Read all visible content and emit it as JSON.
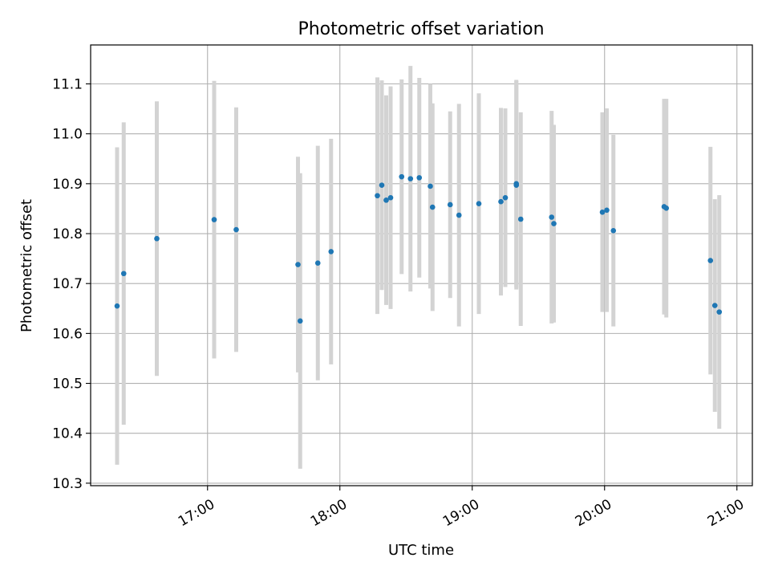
{
  "chart_data": {
    "type": "scatter",
    "title": "Photometric offset variation",
    "xlabel": "UTC time",
    "ylabel": "Photometric offset",
    "x_type": "time",
    "xlim": [
      "16:07",
      "21:07"
    ],
    "ylim": [
      10.295,
      11.178
    ],
    "grid": true,
    "x_ticks": [
      "17:00",
      "18:00",
      "19:00",
      "20:00",
      "21:00"
    ],
    "y_ticks": [
      10.3,
      10.4,
      10.5,
      10.6,
      10.7,
      10.8,
      10.9,
      11.0,
      11.1
    ],
    "y_tick_labels": [
      "10.3",
      "10.4",
      "10.5",
      "10.6",
      "10.7",
      "10.8",
      "10.9",
      "11.0",
      "11.1"
    ],
    "colors": {
      "point": "#1f77b4",
      "errorbar": "#d3d3d3",
      "grid": "#b0b0b0"
    },
    "series": [
      {
        "points": [
          {
            "x": "16:19",
            "y": 10.655,
            "err": 0.318
          },
          {
            "x": "16:22",
            "y": 10.72,
            "err": 0.303
          },
          {
            "x": "16:37",
            "y": 10.79,
            "err": 0.275
          },
          {
            "x": "17:03",
            "y": 10.828,
            "err": 0.278
          },
          {
            "x": "17:13",
            "y": 10.808,
            "err": 0.245
          },
          {
            "x": "17:41",
            "y": 10.738,
            "err": 0.216
          },
          {
            "x": "17:42",
            "y": 10.625,
            "err": 0.296
          },
          {
            "x": "17:50",
            "y": 10.741,
            "err": 0.235
          },
          {
            "x": "17:56",
            "y": 10.764,
            "err": 0.226
          },
          {
            "x": "18:17",
            "y": 10.876,
            "err": 0.237
          },
          {
            "x": "18:19",
            "y": 10.897,
            "err": 0.21
          },
          {
            "x": "18:21",
            "y": 10.867,
            "err": 0.21
          },
          {
            "x": "18:23",
            "y": 10.872,
            "err": 0.223
          },
          {
            "x": "18:28",
            "y": 10.914,
            "err": 0.195
          },
          {
            "x": "18:32",
            "y": 10.91,
            "err": 0.226
          },
          {
            "x": "18:36",
            "y": 10.912,
            "err": 0.2
          },
          {
            "x": "18:41",
            "y": 10.895,
            "err": 0.205
          },
          {
            "x": "18:42",
            "y": 10.853,
            "err": 0.208
          },
          {
            "x": "18:50",
            "y": 10.858,
            "err": 0.187
          },
          {
            "x": "18:54",
            "y": 10.837,
            "err": 0.223
          },
          {
            "x": "19:03",
            "y": 10.86,
            "err": 0.221
          },
          {
            "x": "19:13",
            "y": 10.864,
            "err": 0.188
          },
          {
            "x": "19:15",
            "y": 10.872,
            "err": 0.179
          },
          {
            "x": "19:20",
            "y": 10.897,
            "err": 0.209
          },
          {
            "x": "19:20",
            "y": 10.9,
            "err": 0.208
          },
          {
            "x": "19:22",
            "y": 10.829,
            "err": 0.214
          },
          {
            "x": "19:36",
            "y": 10.833,
            "err": 0.213
          },
          {
            "x": "19:37",
            "y": 10.82,
            "err": 0.198
          },
          {
            "x": "19:59",
            "y": 10.843,
            "err": 0.2
          },
          {
            "x": "20:01",
            "y": 10.847,
            "err": 0.204
          },
          {
            "x": "20:04",
            "y": 10.806,
            "err": 0.192
          },
          {
            "x": "20:27",
            "y": 10.854,
            "err": 0.216
          },
          {
            "x": "20:28",
            "y": 10.851,
            "err": 0.219
          },
          {
            "x": "20:48",
            "y": 10.746,
            "err": 0.228
          },
          {
            "x": "20:50",
            "y": 10.656,
            "err": 0.213
          },
          {
            "x": "20:52",
            "y": 10.643,
            "err": 0.234
          }
        ]
      }
    ]
  }
}
